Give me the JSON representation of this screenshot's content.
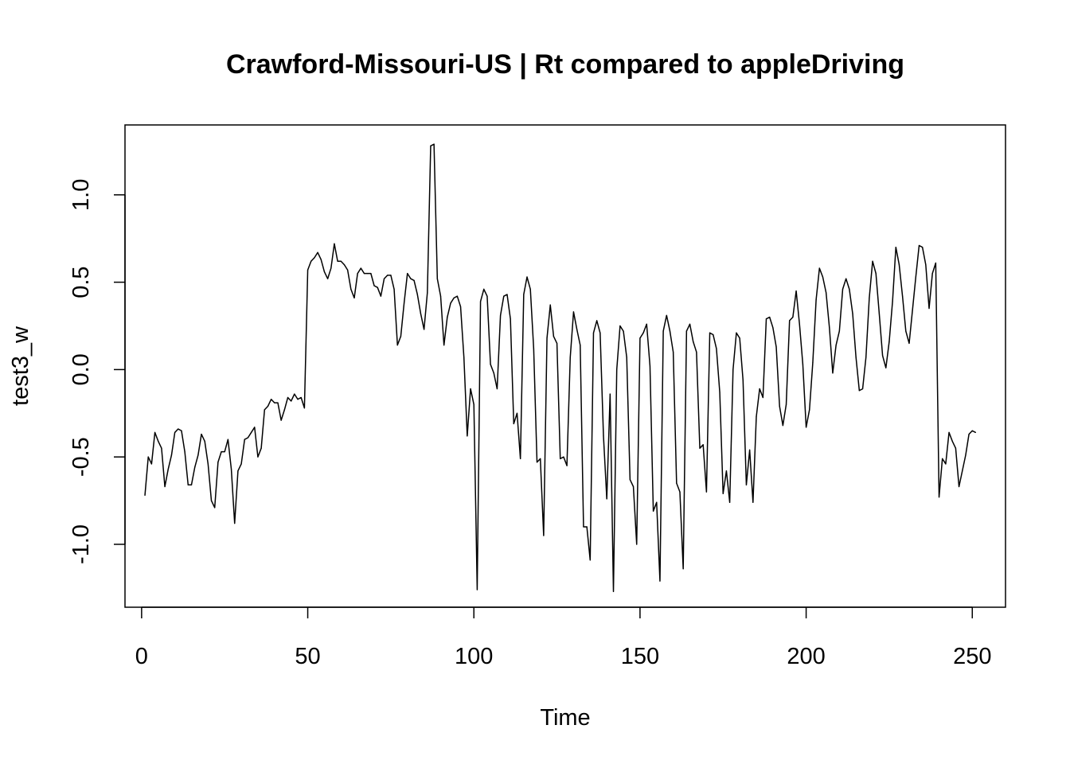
{
  "chart_data": {
    "type": "line",
    "title": "Crawford-Missouri-US | Rt compared to appleDriving",
    "xlabel": "Time",
    "ylabel": "test3_w",
    "xlim": [
      -5,
      260
    ],
    "ylim": [
      -1.36,
      1.4
    ],
    "x_ticks": [
      0,
      50,
      100,
      150,
      200,
      250
    ],
    "y_ticks": [
      -1.0,
      -0.5,
      0.0,
      0.5,
      1.0
    ],
    "x_tick_labels": [
      "0",
      "50",
      "100",
      "150",
      "200",
      "250"
    ],
    "y_tick_labels": [
      "-1.0",
      "-0.5",
      "0.0",
      "0.5",
      "1.0"
    ],
    "grid": false,
    "legend": "none",
    "line_color": "#000000",
    "series": [
      {
        "x_start": 1,
        "x_step": 1,
        "values": [
          -0.72,
          -0.5,
          -0.54,
          -0.36,
          -0.41,
          -0.45,
          -0.67,
          -0.57,
          -0.49,
          -0.36,
          -0.34,
          -0.35,
          -0.47,
          -0.66,
          -0.66,
          -0.56,
          -0.49,
          -0.37,
          -0.41,
          -0.54,
          -0.75,
          -0.79,
          -0.53,
          -0.47,
          -0.47,
          -0.4,
          -0.57,
          -0.88,
          -0.58,
          -0.54,
          -0.4,
          -0.39,
          -0.36,
          -0.33,
          -0.5,
          -0.45,
          -0.23,
          -0.21,
          -0.17,
          -0.19,
          -0.19,
          -0.29,
          -0.23,
          -0.16,
          -0.18,
          -0.14,
          -0.17,
          -0.16,
          -0.22,
          0.57,
          0.62,
          0.64,
          0.67,
          0.63,
          0.56,
          0.52,
          0.58,
          0.72,
          0.62,
          0.62,
          0.6,
          0.57,
          0.46,
          0.41,
          0.55,
          0.58,
          0.55,
          0.55,
          0.55,
          0.48,
          0.47,
          0.42,
          0.52,
          0.54,
          0.54,
          0.46,
          0.14,
          0.19,
          0.38,
          0.55,
          0.52,
          0.51,
          0.43,
          0.32,
          0.23,
          0.44,
          1.28,
          1.29,
          0.52,
          0.42,
          0.14,
          0.3,
          0.38,
          0.41,
          0.42,
          0.36,
          0.07,
          -0.38,
          -0.11,
          -0.2,
          -1.26,
          0.39,
          0.46,
          0.42,
          0.03,
          -0.02,
          -0.11,
          0.31,
          0.42,
          0.43,
          0.29,
          -0.31,
          -0.25,
          -0.51,
          0.43,
          0.53,
          0.46,
          0.12,
          -0.53,
          -0.51,
          -0.95,
          0.18,
          0.37,
          0.19,
          0.15,
          -0.51,
          -0.5,
          -0.55,
          0.07,
          0.33,
          0.23,
          0.14,
          -0.9,
          -0.9,
          -1.09,
          0.21,
          0.28,
          0.21,
          -0.38,
          -0.74,
          -0.14,
          -1.27,
          0.0,
          0.25,
          0.22,
          0.07,
          -0.63,
          -0.67,
          -1.0,
          0.18,
          0.21,
          0.26,
          0.02,
          -0.81,
          -0.76,
          -1.21,
          0.22,
          0.31,
          0.22,
          0.1,
          -0.65,
          -0.7,
          -1.14,
          0.22,
          0.26,
          0.16,
          0.1,
          -0.45,
          -0.43,
          -0.7,
          0.21,
          0.2,
          0.12,
          -0.13,
          -0.71,
          -0.58,
          -0.76,
          0.0,
          0.21,
          0.18,
          -0.06,
          -0.66,
          -0.46,
          -0.76,
          -0.27,
          -0.11,
          -0.16,
          0.29,
          0.3,
          0.24,
          0.13,
          -0.21,
          -0.32,
          -0.2,
          0.28,
          0.3,
          0.45,
          0.26,
          0.03,
          -0.33,
          -0.23,
          0.04,
          0.4,
          0.58,
          0.53,
          0.44,
          0.24,
          -0.02,
          0.14,
          0.22,
          0.46,
          0.52,
          0.46,
          0.32,
          0.07,
          -0.12,
          -0.11,
          0.07,
          0.41,
          0.62,
          0.55,
          0.32,
          0.08,
          0.01,
          0.16,
          0.39,
          0.7,
          0.6,
          0.42,
          0.22,
          0.15,
          0.34,
          0.53,
          0.71,
          0.7,
          0.6,
          0.35,
          0.55,
          0.61,
          -0.73,
          -0.51,
          -0.54,
          -0.36,
          -0.41,
          -0.45,
          -0.67,
          -0.58,
          -0.49,
          -0.37,
          -0.35,
          -0.36
        ]
      }
    ]
  }
}
